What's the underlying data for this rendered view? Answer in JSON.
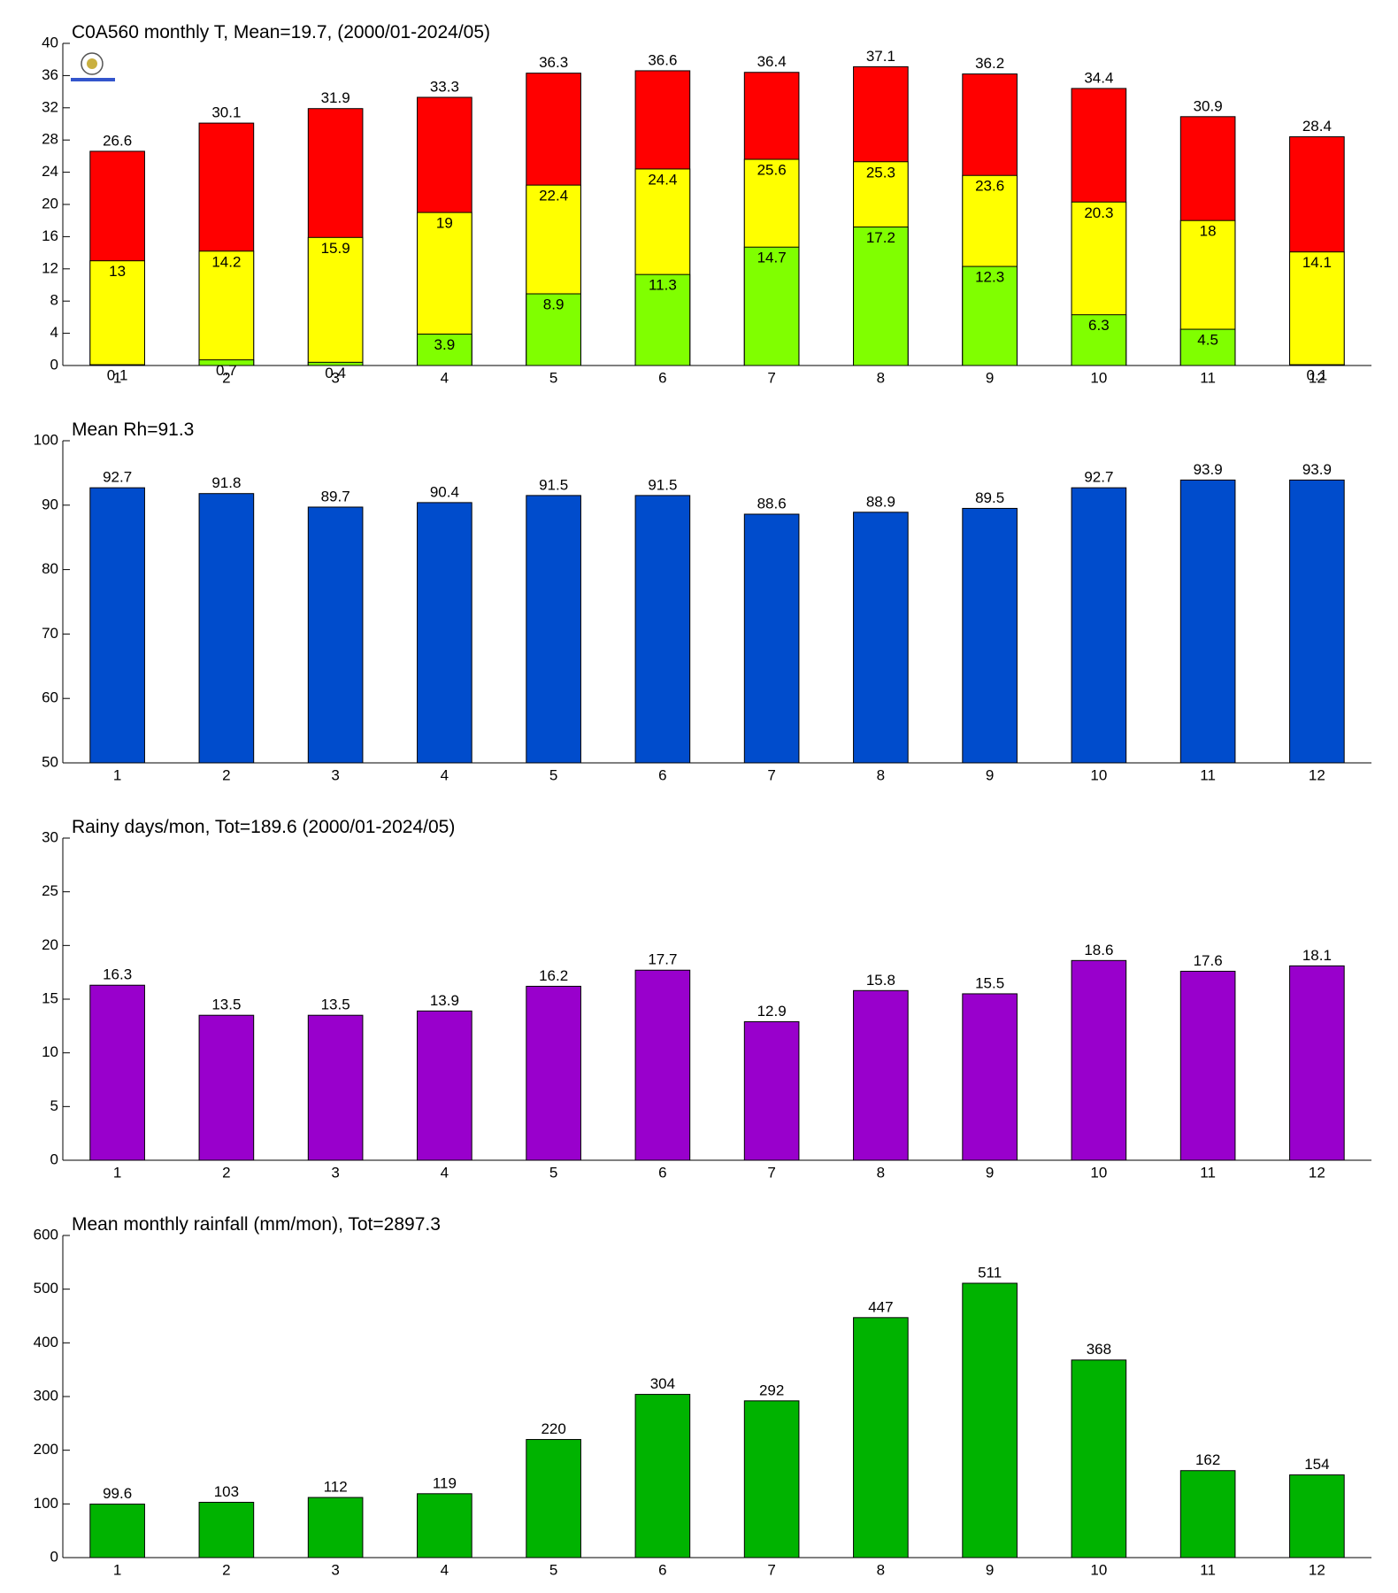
{
  "chart_data": [
    {
      "type": "bar",
      "title": "C0A560 monthly T, Mean=19.7, (2000/01-2024/05)",
      "categories": [
        1,
        2,
        3,
        4,
        5,
        6,
        7,
        8,
        9,
        10,
        11,
        12
      ],
      "series": [
        {
          "color": "#ff0000",
          "values": [
            26.6,
            30.1,
            31.9,
            33.3,
            36.3,
            36.6,
            36.4,
            37.1,
            36.2,
            34.4,
            30.9,
            28.4
          ]
        },
        {
          "color": "#ffff00",
          "values": [
            13,
            14.2,
            15.9,
            19,
            22.4,
            24.4,
            25.6,
            25.3,
            23.6,
            20.3,
            18,
            14.1
          ]
        },
        {
          "color": "#80ff00",
          "values": [
            0.1,
            0.7,
            0.4,
            3.9,
            8.9,
            11.3,
            14.7,
            17.2,
            12.3,
            6.3,
            4.5,
            0.1
          ]
        }
      ],
      "ylim": [
        0,
        40
      ],
      "yticks": [
        0,
        4,
        8,
        12,
        16,
        20,
        24,
        28,
        32,
        36,
        40
      ]
    },
    {
      "type": "bar",
      "title": "Mean Rh=91.3",
      "categories": [
        1,
        2,
        3,
        4,
        5,
        6,
        7,
        8,
        9,
        10,
        11,
        12
      ],
      "values": [
        92.7,
        91.8,
        89.7,
        90.4,
        91.5,
        91.5,
        88.6,
        88.9,
        89.5,
        92.7,
        93.9,
        93.9
      ],
      "color": "#004ccc",
      "ylim": [
        50,
        100
      ],
      "yticks": [
        50,
        60,
        70,
        80,
        90,
        100
      ]
    },
    {
      "type": "bar",
      "title": "Rainy days/mon, Tot=189.6 (2000/01-2024/05)",
      "categories": [
        1,
        2,
        3,
        4,
        5,
        6,
        7,
        8,
        9,
        10,
        11,
        12
      ],
      "values": [
        16.3,
        13.5,
        13.5,
        13.9,
        16.2,
        17.7,
        12.9,
        15.8,
        15.5,
        18.6,
        17.6,
        18.1
      ],
      "color": "#9900cc",
      "ylim": [
        0,
        30
      ],
      "yticks": [
        0,
        5,
        10,
        15,
        20,
        25,
        30
      ]
    },
    {
      "type": "bar",
      "title": "Mean monthly rainfall (mm/mon), Tot=2897.3",
      "categories": [
        1,
        2,
        3,
        4,
        5,
        6,
        7,
        8,
        9,
        10,
        11,
        12
      ],
      "values": [
        99.6,
        103,
        112,
        119,
        220,
        304,
        292,
        447,
        511,
        368,
        162,
        154
      ],
      "color": "#00b300",
      "ylim": [
        0,
        600
      ],
      "yticks": [
        0,
        100,
        200,
        300,
        400,
        500,
        600
      ]
    }
  ]
}
